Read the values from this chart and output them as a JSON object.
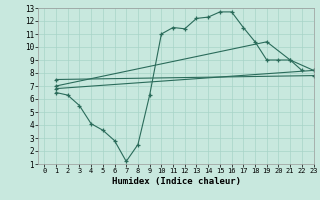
{
  "xlabel": "Humidex (Indice chaleur)",
  "bg_color": "#c8e8de",
  "line_color": "#2a6b5a",
  "grid_color": "#a8d4c8",
  "xlim": [
    -0.5,
    23
  ],
  "ylim": [
    1,
    13
  ],
  "xticks": [
    0,
    1,
    2,
    3,
    4,
    5,
    6,
    7,
    8,
    9,
    10,
    11,
    12,
    13,
    14,
    15,
    16,
    17,
    18,
    19,
    20,
    21,
    22,
    23
  ],
  "yticks": [
    1,
    2,
    3,
    4,
    5,
    6,
    7,
    8,
    9,
    10,
    11,
    12,
    13
  ],
  "line1_x": [
    1,
    2,
    3,
    4,
    5,
    6,
    7,
    8,
    9,
    10,
    11,
    12,
    13,
    14,
    15,
    16,
    17,
    18,
    19,
    20,
    21,
    22
  ],
  "line1_y": [
    6.5,
    6.3,
    5.5,
    4.1,
    3.6,
    2.8,
    1.2,
    2.5,
    6.3,
    11.0,
    11.5,
    11.4,
    12.2,
    12.3,
    12.7,
    12.7,
    11.5,
    10.4,
    9.0,
    9.0,
    9.0,
    8.2
  ],
  "line2_x": [
    1,
    23
  ],
  "line2_y": [
    6.8,
    8.2
  ],
  "line3_x": [
    1,
    19,
    21,
    23
  ],
  "line3_y": [
    7.0,
    10.4,
    9.0,
    8.2
  ],
  "line4_x": [
    1,
    23
  ],
  "line4_y": [
    7.5,
    7.8
  ]
}
